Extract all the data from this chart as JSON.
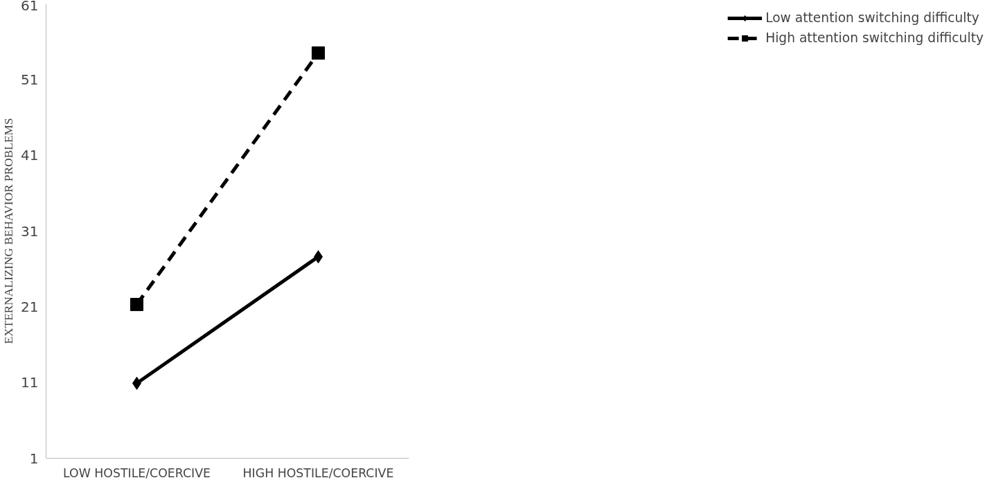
{
  "chart_data": {
    "type": "line",
    "ylabel": "EXTERNALIZING BEHAVIOR PROBLEMS",
    "categories": [
      "LOW HOSTILE/COERCIVE",
      "HIGH HOSTILE/COERCIVE"
    ],
    "series": [
      {
        "name": "Low attention switching difficulty",
        "color": "#000000",
        "values": [
          10.9,
          27.6
        ],
        "marker": "diamond",
        "line_style": "solid"
      },
      {
        "name": "High attention switching difficulty",
        "color": "#000000",
        "values": [
          21.3,
          54.5
        ],
        "marker": "square",
        "line_style": "dashed"
      }
    ],
    "ylim": [
      1,
      61
    ],
    "yticks": [
      1,
      11,
      21,
      31,
      41,
      51,
      61
    ],
    "grid": false,
    "legend": "right"
  }
}
